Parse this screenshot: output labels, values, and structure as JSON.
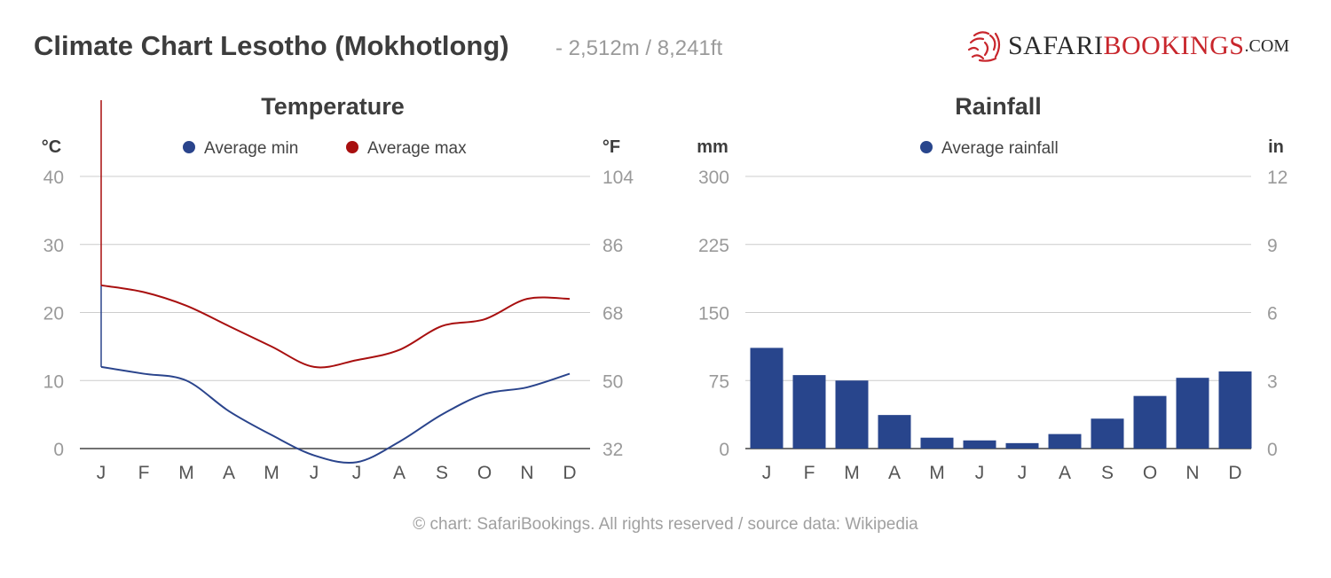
{
  "header": {
    "title": "Climate Chart Lesotho (Mokhotlong)",
    "subtitle": "- 2,512m / 8,241ft"
  },
  "logo": {
    "text_dark": "SAFARI",
    "text_red": "BOOKINGS",
    "suffix": ".COM"
  },
  "footer": "© chart: SafariBookings. All rights reserved / source data: Wikipedia",
  "colors": {
    "min": "#2a448c",
    "max": "#a80f0f",
    "rain": "#28458c",
    "grid": "#cccccc"
  },
  "chart_data": [
    {
      "type": "line",
      "title": "Temperature",
      "ylabel": "°C",
      "ylabel_right": "°F",
      "categories": [
        "J",
        "F",
        "M",
        "A",
        "M",
        "J",
        "J",
        "A",
        "S",
        "O",
        "N",
        "D"
      ],
      "ylim": [
        0,
        40
      ],
      "yticks": [
        0,
        10,
        20,
        30,
        40
      ],
      "yticks_right": [
        32,
        50,
        68,
        86,
        104
      ],
      "grid": true,
      "legend": "top",
      "series": [
        {
          "name": "Average min",
          "values": [
            12,
            11,
            10,
            5.5,
            2,
            -1,
            -2,
            1,
            5,
            8,
            9,
            11
          ]
        },
        {
          "name": "Average max",
          "values": [
            24,
            23,
            21,
            18,
            15,
            12,
            13,
            14.5,
            18,
            19,
            22,
            22
          ]
        }
      ]
    },
    {
      "type": "bar",
      "title": "Rainfall",
      "ylabel": "mm",
      "ylabel_right": "in",
      "categories": [
        "J",
        "F",
        "M",
        "A",
        "M",
        "J",
        "J",
        "A",
        "S",
        "O",
        "N",
        "D"
      ],
      "ylim": [
        0,
        300
      ],
      "yticks": [
        0,
        75,
        150,
        225,
        300
      ],
      "yticks_right": [
        0,
        3,
        6,
        9,
        12
      ],
      "grid": true,
      "legend": "top",
      "series": [
        {
          "name": "Average rainfall",
          "values": [
            111,
            81,
            75,
            37,
            12,
            9,
            6,
            16,
            33,
            58,
            78,
            85
          ]
        }
      ]
    }
  ]
}
